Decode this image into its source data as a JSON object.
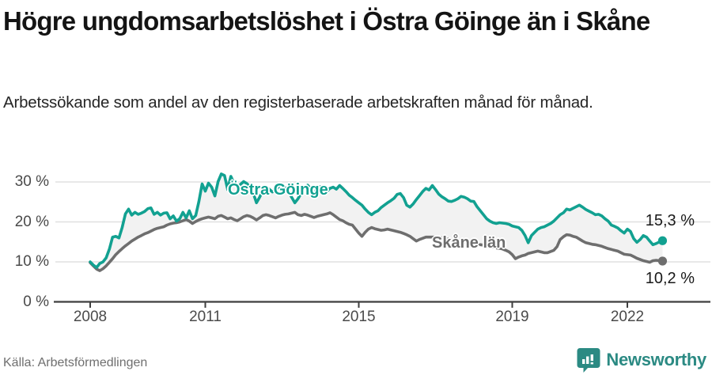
{
  "header": {
    "title": "Högre ungdomsarbetslöshet i Östra Göinge än i Skåne",
    "subtitle": "Arbetssökande som andel av den registerbaserade arbetskraften månad för månad."
  },
  "chart_data": {
    "type": "line",
    "frequency": "monthly",
    "x_start": "2008-01",
    "x_end": "2022-12",
    "unit": "%",
    "ylim": [
      0,
      33
    ],
    "grid": "horizontal",
    "x_ticks": [
      {
        "year": 2008,
        "label": "2008"
      },
      {
        "year": 2011,
        "label": "2011"
      },
      {
        "year": 2015,
        "label": "2015"
      },
      {
        "year": 2019,
        "label": "2019"
      },
      {
        "year": 2022,
        "label": "2022"
      }
    ],
    "y_ticks": [
      {
        "value": 0,
        "label": "0 %"
      },
      {
        "value": 10,
        "label": "10 %"
      },
      {
        "value": 20,
        "label": "20 %"
      },
      {
        "value": 30,
        "label": "30 %"
      }
    ],
    "fill_between_color": "#f2f2f2",
    "series": [
      {
        "name": "Östra Göinge",
        "color": "#12a191",
        "end_label": "15,3 %",
        "end_value": 15.3,
        "values": [
          10.0,
          9.2,
          8.6,
          9.6,
          10.0,
          11.0,
          13.2,
          16.2,
          16.4,
          16.0,
          18.6,
          22.0,
          23.2,
          21.7,
          22.4,
          21.9,
          22.2,
          22.6,
          23.3,
          23.5,
          21.9,
          22.4,
          21.7,
          22.2,
          22.3,
          20.8,
          21.5,
          20.2,
          20.8,
          22.4,
          21.0,
          22.8,
          20.8,
          21.6,
          25.1,
          29.5,
          27.7,
          29.7,
          28.7,
          26.5,
          30.1,
          32.0,
          31.6,
          28.1,
          31.4,
          29.6,
          28.8,
          29.4,
          30.1,
          29.6,
          28.8,
          27.2,
          24.8,
          26.2,
          27.8,
          28.8,
          28.2,
          27.5,
          28.0,
          28.8,
          29.2,
          28.6,
          27.6,
          26.2,
          24.8,
          25.8,
          27.2,
          28.6,
          29.2,
          28.2,
          27.6,
          28.2,
          28.8,
          28.3,
          27.7,
          28.4,
          28.7,
          28.2,
          29.1,
          28.4,
          27.6,
          26.7,
          26.1,
          25.4,
          24.8,
          24.2,
          23.2,
          22.4,
          21.8,
          22.4,
          22.8,
          23.6,
          24.2,
          24.8,
          25.3,
          25.9,
          26.9,
          27.1,
          26.1,
          24.2,
          23.7,
          24.5,
          25.6,
          26.6,
          27.6,
          28.4,
          28.0,
          29.1,
          28.1,
          27.0,
          26.3,
          25.8,
          25.2,
          25.1,
          25.4,
          25.8,
          26.4,
          26.2,
          25.8,
          25.2,
          25.1,
          23.8,
          22.8,
          21.8,
          20.8,
          20.2,
          19.8,
          19.6,
          19.8,
          19.7,
          19.6,
          19.4,
          19.0,
          18.8,
          18.6,
          17.9,
          16.6,
          14.8,
          16.6,
          17.4,
          18.2,
          18.6,
          18.8,
          19.2,
          19.6,
          20.2,
          21.0,
          21.8,
          22.3,
          23.2,
          23.0,
          23.4,
          23.8,
          24.2,
          23.7,
          23.1,
          22.7,
          22.3,
          21.8,
          21.9,
          21.5,
          20.8,
          20.2,
          19.2,
          18.9,
          18.5,
          17.8,
          17.2,
          18.2,
          17.6,
          15.8,
          14.9,
          15.6,
          16.6,
          16.2,
          15.2,
          14.3,
          14.6,
          15.0,
          15.3
        ]
      },
      {
        "name": "Skåne län",
        "color": "#6e6e6e",
        "end_label": "10,2 %",
        "end_value": 10.2,
        "values": [
          9.8,
          9.0,
          8.2,
          7.8,
          8.3,
          9.0,
          9.9,
          10.8,
          11.8,
          12.6,
          13.3,
          14.0,
          14.6,
          15.2,
          15.7,
          16.2,
          16.6,
          17.0,
          17.3,
          17.7,
          18.1,
          18.4,
          18.6,
          18.8,
          19.2,
          19.5,
          19.7,
          19.8,
          20.0,
          20.3,
          20.6,
          20.2,
          19.6,
          20.1,
          20.5,
          20.8,
          21.0,
          21.2,
          21.0,
          20.8,
          21.4,
          21.6,
          21.2,
          20.8,
          21.0,
          20.6,
          20.3,
          20.8,
          21.3,
          21.6,
          21.4,
          21.0,
          20.5,
          21.0,
          21.6,
          21.8,
          21.6,
          21.3,
          21.0,
          21.4,
          21.7,
          21.9,
          22.0,
          22.2,
          22.4,
          21.8,
          21.6,
          21.9,
          21.7,
          21.4,
          21.1,
          21.4,
          21.6,
          21.8,
          22.0,
          22.3,
          21.8,
          21.2,
          20.6,
          20.3,
          19.8,
          19.4,
          19.2,
          18.2,
          17.2,
          16.4,
          17.4,
          18.2,
          18.6,
          18.3,
          18.1,
          17.9,
          18.0,
          18.2,
          18.0,
          17.8,
          17.6,
          17.4,
          17.1,
          16.8,
          16.4,
          15.8,
          15.2,
          15.6,
          15.9,
          16.2,
          16.2,
          16.2,
          16.2,
          16.1,
          16.0,
          15.8,
          15.7,
          15.4,
          15.2,
          14.7,
          14.3,
          14.8,
          14.7,
          14.6,
          14.6,
          14.5,
          14.3,
          14.2,
          14.0,
          13.9,
          13.7,
          13.5,
          13.4,
          13.2,
          12.9,
          12.5,
          11.8,
          10.8,
          11.2,
          11.5,
          11.7,
          12.1,
          12.3,
          12.5,
          12.7,
          12.5,
          12.3,
          12.3,
          12.6,
          12.9,
          13.8,
          15.6,
          16.3,
          16.8,
          16.7,
          16.4,
          16.2,
          15.7,
          15.2,
          14.8,
          14.6,
          14.4,
          14.3,
          14.1,
          13.9,
          13.6,
          13.3,
          13.1,
          12.9,
          12.7,
          12.3,
          11.9,
          11.8,
          11.7,
          11.3,
          10.9,
          10.6,
          10.3,
          10.1,
          9.9,
          10.3,
          10.4,
          10.3,
          10.2
        ]
      }
    ]
  },
  "footer": {
    "source": "Källa: Arbetsförmedlingen",
    "brand": "Newsworthy",
    "brand_color": "#2b8a83"
  }
}
